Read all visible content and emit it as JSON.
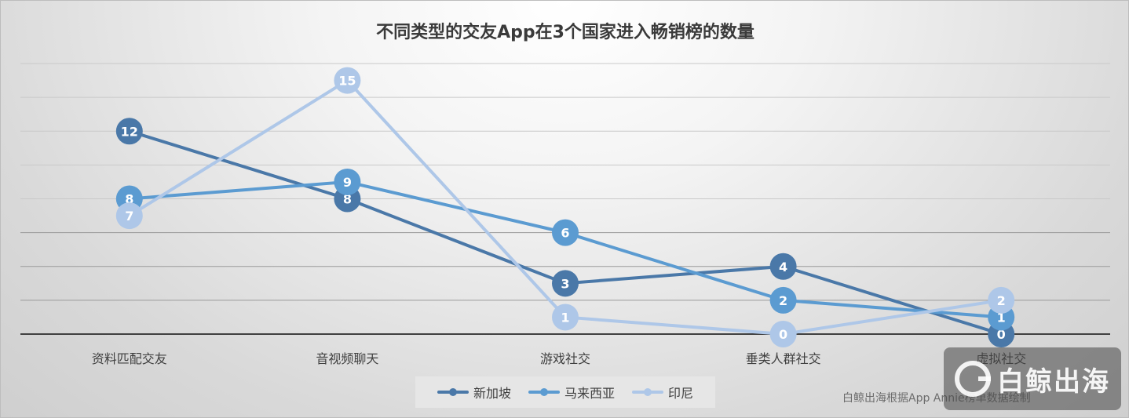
{
  "chart_data": {
    "type": "line",
    "title": "不同类型的交友App在3个国家进入畅销榜的数量",
    "categories": [
      "资料匹配交友",
      "音视频聊天",
      "游戏社交",
      "垂类人群社交",
      "虚拟社交"
    ],
    "series": [
      {
        "name": "新加坡",
        "color": "#4a78a8",
        "values": [
          12,
          8,
          3,
          4,
          0
        ]
      },
      {
        "name": "马来西亚",
        "color": "#5b9bd1",
        "values": [
          8,
          9,
          6,
          2,
          1
        ]
      },
      {
        "name": "印尼",
        "color": "#aec7e8",
        "values": [
          7,
          15,
          1,
          0,
          2
        ]
      }
    ],
    "ylim": [
      0,
      16
    ],
    "grid": true,
    "legend_position": "bottom",
    "xlabel": "",
    "ylabel": ""
  },
  "source_note": "白鲸出海根据App Annie榜单数据绘制",
  "watermark_text": "白鲸出海"
}
